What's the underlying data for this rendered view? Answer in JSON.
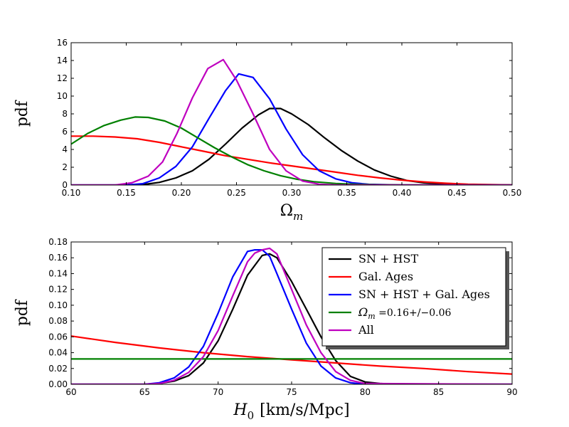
{
  "chart_data": [
    {
      "type": "line",
      "xlabel": "Ω",
      "xlabel_sub": "m",
      "ylabel": "pdf",
      "xlim": [
        0.1,
        0.5
      ],
      "ylim": [
        0,
        16
      ],
      "xticks": [
        "0.10",
        "0.15",
        "0.20",
        "0.25",
        "0.30",
        "0.35",
        "0.40",
        "0.45",
        "0.50"
      ],
      "yticks": [
        "0",
        "2",
        "4",
        "6",
        "8",
        "10",
        "12",
        "14",
        "16"
      ],
      "series": [
        {
          "name": "SN + HST",
          "color": "#000000",
          "x": [
            0.1,
            0.15,
            0.165,
            0.18,
            0.195,
            0.21,
            0.225,
            0.24,
            0.255,
            0.27,
            0.28,
            0.29,
            0.3,
            0.315,
            0.33,
            0.345,
            0.36,
            0.375,
            0.39,
            0.405,
            0.42,
            0.44,
            0.47,
            0.5
          ],
          "y": [
            0,
            0,
            0.05,
            0.3,
            0.8,
            1.6,
            2.9,
            4.6,
            6.4,
            7.9,
            8.6,
            8.6,
            8.0,
            6.8,
            5.3,
            3.9,
            2.7,
            1.7,
            1.0,
            0.5,
            0.25,
            0.1,
            0.02,
            0
          ]
        },
        {
          "name": "Gal. Ages",
          "color": "#ff0000",
          "x": [
            0.1,
            0.12,
            0.14,
            0.16,
            0.18,
            0.2,
            0.22,
            0.24,
            0.26,
            0.28,
            0.3,
            0.32,
            0.34,
            0.36,
            0.38,
            0.4,
            0.42,
            0.44,
            0.46,
            0.48,
            0.5
          ],
          "y": [
            5.5,
            5.5,
            5.4,
            5.2,
            4.8,
            4.3,
            3.8,
            3.3,
            2.9,
            2.5,
            2.15,
            1.8,
            1.45,
            1.1,
            0.8,
            0.55,
            0.35,
            0.2,
            0.1,
            0.05,
            0.02
          ]
        },
        {
          "name": "SN + HST + Gal. Ages",
          "color": "#0000ff",
          "x": [
            0.1,
            0.15,
            0.165,
            0.18,
            0.195,
            0.21,
            0.225,
            0.24,
            0.252,
            0.265,
            0.28,
            0.295,
            0.31,
            0.325,
            0.34,
            0.355,
            0.37,
            0.4,
            0.5
          ],
          "y": [
            0,
            0,
            0.15,
            0.8,
            2.1,
            4.3,
            7.5,
            10.6,
            12.5,
            12.1,
            9.7,
            6.3,
            3.4,
            1.6,
            0.7,
            0.25,
            0.08,
            0,
            0
          ]
        },
        {
          "name": "Ω_m =0.16+/−0.06",
          "color": "#008000",
          "x": [
            0.1,
            0.115,
            0.13,
            0.145,
            0.158,
            0.17,
            0.185,
            0.2,
            0.215,
            0.23,
            0.245,
            0.26,
            0.275,
            0.29,
            0.305,
            0.32,
            0.34,
            0.36,
            0.38,
            0.4,
            0.45,
            0.5
          ],
          "y": [
            4.6,
            5.8,
            6.7,
            7.3,
            7.65,
            7.6,
            7.2,
            6.4,
            5.3,
            4.2,
            3.2,
            2.3,
            1.6,
            1.05,
            0.65,
            0.38,
            0.18,
            0.08,
            0.03,
            0.01,
            0,
            0
          ]
        },
        {
          "name": "All",
          "color": "#bf00bf",
          "x": [
            0.1,
            0.14,
            0.155,
            0.17,
            0.183,
            0.196,
            0.21,
            0.224,
            0.238,
            0.25,
            0.265,
            0.28,
            0.295,
            0.31,
            0.325,
            0.34,
            0.5
          ],
          "y": [
            0,
            0,
            0.25,
            1.0,
            2.6,
            5.8,
            9.8,
            13.1,
            14.1,
            11.8,
            8.0,
            4.0,
            1.6,
            0.45,
            0.1,
            0.02,
            0
          ]
        }
      ]
    },
    {
      "type": "line",
      "xlabel": "H",
      "xlabel_sub": "0",
      "xlabel_rest": "[km/s/Mpc]",
      "ylabel": "pdf",
      "xlim": [
        60,
        90
      ],
      "ylim": [
        0,
        0.18
      ],
      "xticks": [
        "60",
        "65",
        "70",
        "75",
        "80",
        "85",
        "90"
      ],
      "yticks": [
        "0.00",
        "0.02",
        "0.04",
        "0.06",
        "0.08",
        "0.10",
        "0.12",
        "0.14",
        "0.16",
        "0.18"
      ],
      "legend_position": "top-right",
      "series": [
        {
          "name": "SN + HST",
          "color": "#000000",
          "x": [
            60,
            65,
            66,
            67,
            68,
            69,
            70,
            71,
            72,
            73,
            73.5,
            74,
            75,
            76,
            77,
            78,
            79,
            80,
            81,
            82,
            90
          ],
          "y": [
            0,
            0,
            0.001,
            0.004,
            0.011,
            0.027,
            0.055,
            0.095,
            0.138,
            0.163,
            0.165,
            0.16,
            0.13,
            0.095,
            0.06,
            0.03,
            0.01,
            0.003,
            0.001,
            0,
            0
          ]
        },
        {
          "name": "Gal. Ages",
          "color": "#ff0000",
          "x": [
            60,
            63,
            66,
            69,
            72,
            75,
            78,
            81,
            84,
            87,
            90
          ],
          "y": [
            0.061,
            0.053,
            0.046,
            0.04,
            0.035,
            0.031,
            0.027,
            0.023,
            0.02,
            0.016,
            0.013
          ]
        },
        {
          "name": "SN + HST + Gal. Ages",
          "color": "#0000ff",
          "x": [
            60,
            65,
            66,
            67,
            68,
            69,
            70,
            71,
            72,
            72.5,
            73,
            73.5,
            74,
            75,
            76,
            77,
            78,
            79,
            80,
            90
          ],
          "y": [
            0,
            0,
            0.002,
            0.008,
            0.022,
            0.048,
            0.09,
            0.136,
            0.168,
            0.17,
            0.17,
            0.162,
            0.14,
            0.095,
            0.052,
            0.023,
            0.008,
            0.002,
            0,
            0
          ]
        },
        {
          "name": "Ω_m =0.16+/−0.06",
          "color": "#008000",
          "x": [
            60,
            90
          ],
          "y": [
            0.032,
            0.032
          ]
        },
        {
          "name": "All",
          "color": "#bf00bf",
          "x": [
            60,
            65,
            66,
            67,
            68,
            69,
            70,
            71,
            72,
            72.5,
            73,
            73.5,
            74,
            75,
            76,
            77,
            78,
            79,
            80,
            90
          ],
          "y": [
            0,
            0,
            0.001,
            0.005,
            0.015,
            0.035,
            0.068,
            0.112,
            0.155,
            0.166,
            0.17,
            0.172,
            0.165,
            0.12,
            0.075,
            0.04,
            0.016,
            0.005,
            0.001,
            0
          ]
        }
      ]
    }
  ]
}
